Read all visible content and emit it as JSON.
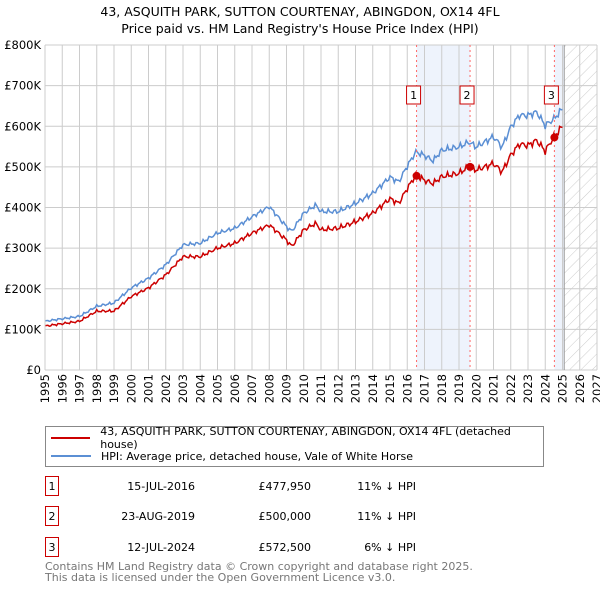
{
  "title_line1": "43, ASQUITH PARK, SUTTON COURTENAY, ABINGDON, OX14 4FL",
  "title_line2": "Price paid vs. HM Land Registry's House Price Index (HPI)",
  "chart_data": {
    "type": "line",
    "title": "Price paid vs. HM Land Registry's House Price Index (HPI)",
    "xlim": [
      1995,
      2027
    ],
    "ylim": [
      0,
      800000
    ],
    "x_ticks": [
      "1995",
      "1996",
      "1997",
      "1998",
      "1999",
      "2000",
      "2001",
      "2002",
      "2003",
      "2004",
      "2005",
      "2006",
      "2007",
      "2008",
      "2009",
      "2010",
      "2011",
      "2012",
      "2013",
      "2014",
      "2015",
      "2016",
      "2017",
      "2018",
      "2019",
      "2020",
      "2021",
      "2022",
      "2023",
      "2024",
      "2025",
      "2026",
      "2027"
    ],
    "y_ticks": [
      "£0",
      "£100K",
      "£200K",
      "£300K",
      "£400K",
      "£500K",
      "£600K",
      "£700K",
      "£800K"
    ],
    "grid": true,
    "forecast_hatch_from": 2025.1,
    "series": [
      {
        "name": "43, ASQUITH PARK, SUTTON COURTENAY, ABINGDON, OX14 4FL (detached house)",
        "color": "#cc0000",
        "x": [
          1995,
          1997,
          1998,
          1999,
          2000,
          2001,
          2002,
          2003,
          2004,
          2005,
          2006,
          2007,
          2008,
          2009,
          2009.3,
          2010,
          2010.7,
          2011,
          2012,
          2013,
          2014,
          2015,
          2015.5,
          2016,
          2016.5,
          2017,
          2017.5,
          2018,
          2019,
          2019.6,
          2020,
          2021,
          2021.5,
          2022,
          2022.5,
          2023,
          2023.5,
          2024,
          2024.5,
          2025
        ],
        "y": [
          108000,
          120000,
          145000,
          145000,
          181000,
          202000,
          234000,
          279000,
          279000,
          300000,
          312000,
          337000,
          357000,
          320000,
          304000,
          345000,
          361000,
          345000,
          349000,
          365000,
          386000,
          422000,
          410000,
          447000,
          480000,
          467000,
          459000,
          476000,
          484000,
          502000,
          492000,
          508000,
          488000,
          529000,
          556000,
          553000,
          565000,
          539000,
          574000,
          600000
        ]
      },
      {
        "name": "HPI: Average price, detached house, Vale of White Horse",
        "color": "#5b8fd4",
        "x": [
          1995,
          1997,
          1998,
          1999,
          2000,
          2001,
          2002,
          2003,
          2004,
          2005,
          2006,
          2007,
          2008,
          2009,
          2009.3,
          2010,
          2010.7,
          2011,
          2012,
          2013,
          2014,
          2015,
          2015.5,
          2016,
          2016.5,
          2017,
          2017.5,
          2018,
          2019,
          2019.6,
          2020,
          2021,
          2021.5,
          2022,
          2022.5,
          2023,
          2023.5,
          2024,
          2024.5,
          2025
        ],
        "y": [
          120000,
          132000,
          157000,
          165000,
          202000,
          226000,
          259000,
          308000,
          312000,
          337000,
          349000,
          377000,
          402000,
          353000,
          341000,
          386000,
          406000,
          390000,
          390000,
          410000,
          435000,
          475000,
          463000,
          502000,
          537000,
          528000,
          515000,
          541000,
          549000,
          561000,
          549000,
          574000,
          549000,
          598000,
          627000,
          627000,
          635000,
          602000,
          618000,
          643000
        ]
      }
    ],
    "sales": [
      {
        "label": "1",
        "x": 2016.54,
        "y": 477950
      },
      {
        "label": "2",
        "x": 2019.64,
        "y": 500000
      },
      {
        "label": "3",
        "x": 2024.53,
        "y": 572500
      }
    ]
  },
  "legend": {
    "property": "43, ASQUITH PARK, SUTTON COURTENAY, ABINGDON, OX14 4FL (detached house)",
    "hpi": "HPI: Average price, detached house, Vale of White Horse"
  },
  "transactions": [
    {
      "num": "1",
      "date": "15-JUL-2016",
      "price": "£477,950",
      "hpi": "11% ↓ HPI"
    },
    {
      "num": "2",
      "date": "23-AUG-2019",
      "price": "£500,000",
      "hpi": "11% ↓ HPI"
    },
    {
      "num": "3",
      "date": "12-JUL-2024",
      "price": "£572,500",
      "hpi": "6% ↓ HPI"
    }
  ],
  "footer": {
    "line1": "Contains HM Land Registry data © Crown copyright and database right 2025.",
    "line2": "This data is licensed under the Open Government Licence v3.0."
  }
}
